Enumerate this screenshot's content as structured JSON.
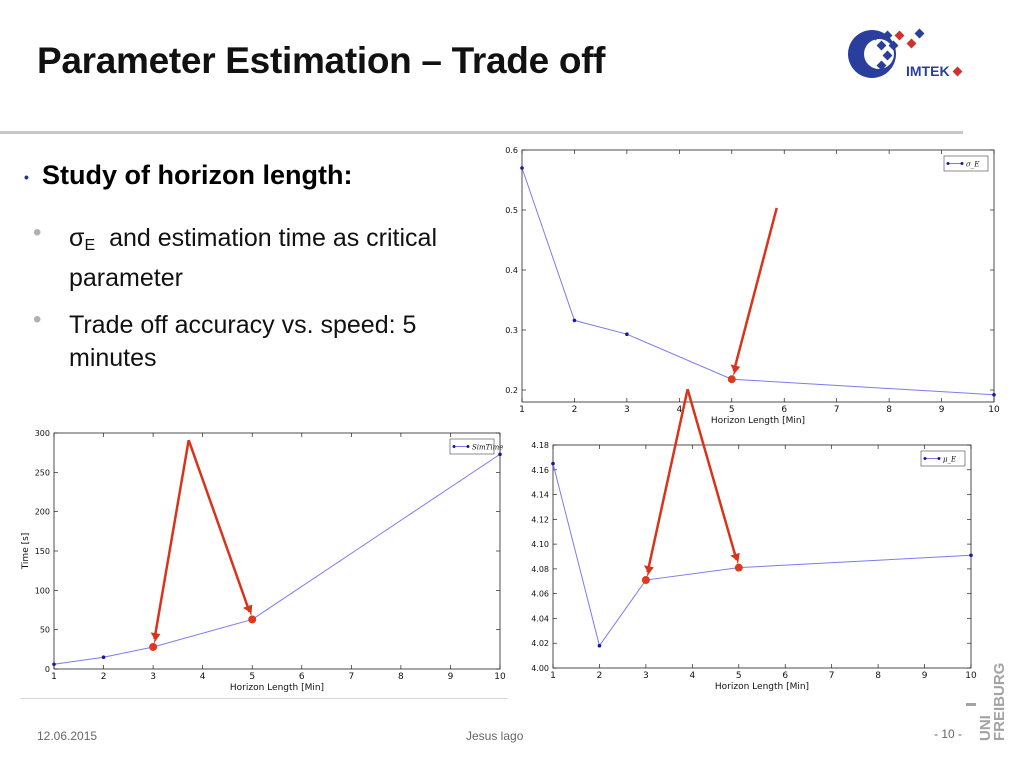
{
  "slide": {
    "title": "Parameter Estimation – Trade off",
    "bullet_main": "Study of horizon length:",
    "sub1_sigma": "σ",
    "sub1_sub": "E",
    "sub1_text": "and estimation time as critical parameter",
    "sub2_text": "Trade off accuracy vs. speed: 5 minutes",
    "bullet_glyph": "•"
  },
  "logo": {
    "text": "IMTEK",
    "colors": {
      "blue": "#2a3f9d",
      "red": "#d0312d"
    }
  },
  "footer": {
    "date": "12.06.2015",
    "author": "Jesus lago",
    "page": "- 10 -"
  },
  "uni_logo": {
    "line1": "UNI",
    "line2": "FREIBURG"
  },
  "colors": {
    "line": "#7b7bf0",
    "marker": "#1a1aa0",
    "highlight": "#e03a1e",
    "arrow": "#d9341b"
  },
  "chart_data": [
    {
      "id": "sigma",
      "type": "line",
      "x": [
        1,
        2,
        3,
        5,
        10
      ],
      "series": [
        {
          "name": "σ_E",
          "values": [
            0.57,
            0.316,
            0.293,
            0.218,
            0.192
          ]
        }
      ],
      "xlabel": "Horizon Length [Min]",
      "ylabel": "",
      "xlim": [
        1,
        10
      ],
      "ylim": [
        0.18,
        0.6
      ],
      "xticks": [
        1,
        2,
        3,
        4,
        5,
        6,
        7,
        8,
        9,
        10
      ],
      "yticks": [
        0.2,
        0.3,
        0.4,
        0.5,
        0.6
      ],
      "legend": "top-right",
      "highlight_x": [
        5
      ],
      "arrows": "one arrow pointing at x=5"
    },
    {
      "id": "simtime",
      "type": "line",
      "x": [
        1,
        2,
        3,
        5,
        10
      ],
      "series": [
        {
          "name": "SimTime",
          "values": [
            6,
            15,
            28,
            63,
            273
          ]
        }
      ],
      "xlabel": "Horizon Length [Min]",
      "ylabel": "Time [s]",
      "xlim": [
        1,
        10
      ],
      "ylim": [
        0,
        300
      ],
      "xticks": [
        1,
        2,
        3,
        4,
        5,
        6,
        7,
        8,
        9,
        10
      ],
      "yticks": [
        0,
        50,
        100,
        150,
        200,
        250,
        300
      ],
      "legend": "top-right",
      "highlight_x": [
        3,
        5
      ],
      "arrows": "two arrows from a common apex pointing at x=3 and x=5"
    },
    {
      "id": "mu",
      "type": "line",
      "x": [
        1,
        2,
        3,
        5,
        10
      ],
      "series": [
        {
          "name": "μ_E",
          "values": [
            4.165,
            4.018,
            4.071,
            4.081,
            4.091
          ]
        }
      ],
      "xlabel": "Horizon Length [Min]",
      "ylabel": "",
      "xlim": [
        1,
        10
      ],
      "ylim": [
        4.0,
        4.18
      ],
      "xticks": [
        1,
        2,
        3,
        4,
        5,
        6,
        7,
        8,
        9,
        10
      ],
      "yticks": [
        4.0,
        4.02,
        4.04,
        4.06,
        4.08,
        4.1,
        4.12,
        4.14,
        4.16,
        4.18
      ],
      "legend": "top-right",
      "highlight_x": [
        3,
        5
      ],
      "arrows": "two arrows from a common apex pointing at x=3 and x=5"
    }
  ]
}
